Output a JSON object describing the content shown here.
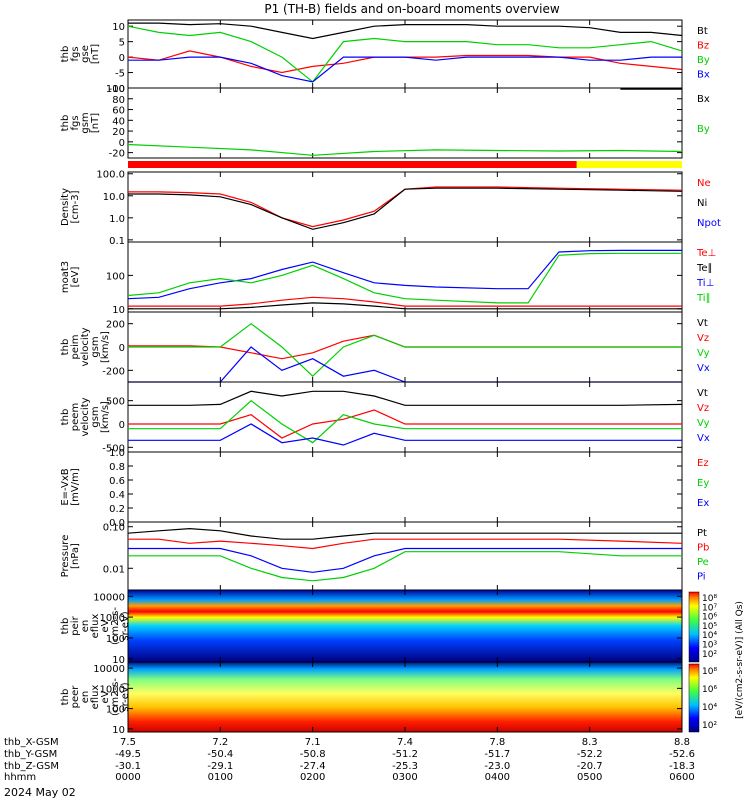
{
  "title": "P1 (TH-B) fields and on-board moments overview",
  "date_label": "2024 May 02",
  "colors": {
    "black": "#000000",
    "red": "#ff0000",
    "green": "#00d000",
    "blue": "#0000ff",
    "yellow": "#ffff00"
  },
  "bars": {
    "mode_bar": {
      "split_fraction": 0.81,
      "left_color": "#ff0000",
      "right_color": "#ffff00"
    }
  },
  "footer": {
    "row_labels": [
      "thb_X-GSM",
      "thb_Y-GSM",
      "thb_Z-GSM",
      "hhmm"
    ],
    "columns": [
      [
        "7.5",
        "-49.5",
        "-30.1",
        "0000"
      ],
      [
        "7.2",
        "-50.4",
        "-29.1",
        "0100"
      ],
      [
        "7.1",
        "-50.8",
        "-27.4",
        "0200"
      ],
      [
        "7.4",
        "-51.2",
        "-25.3",
        "0300"
      ],
      [
        "7.8",
        "-51.7",
        "-23.0",
        "0400"
      ],
      [
        "8.3",
        "-52.2",
        "-20.7",
        "0500"
      ],
      [
        "8.8",
        "-52.6",
        "-18.3",
        "0600"
      ]
    ]
  },
  "colorbars": {
    "label1": "[eV/(cm2-s-sr-eV)] (All Qs)",
    "label2": "[eV/(cm2-s-sr-eV)]",
    "ticks1": [
      "10⁸",
      "10⁷",
      "10⁶",
      "10⁵",
      "10⁴",
      "10³",
      "10²"
    ],
    "ticks2": [
      "10⁸",
      "10⁶",
      "10⁴",
      "10²"
    ]
  },
  "chart_data": [
    {
      "id": "fgs",
      "type": "line",
      "ylabel": [
        "thb",
        "fgs",
        "gse",
        "[nT]"
      ],
      "ylim": [
        -10,
        12
      ],
      "yticks": [
        -10,
        -5,
        0,
        5,
        10
      ],
      "x": [
        0,
        20,
        40,
        60,
        80,
        100,
        120,
        140,
        160,
        180,
        200,
        220,
        240,
        260,
        280,
        300,
        320,
        340,
        360
      ],
      "series": [
        {
          "name": "Bt",
          "color": "#000000",
          "values": [
            11,
            11,
            10.5,
            10.8,
            10,
            8,
            6,
            8,
            10,
            10.5,
            10.5,
            10.5,
            10,
            10,
            10,
            9.5,
            8,
            8,
            7
          ]
        },
        {
          "name": "Bz",
          "color": "#ff0000",
          "values": [
            0,
            -1,
            2,
            0,
            -3,
            -5,
            -3,
            -2,
            0,
            0,
            0,
            0.5,
            0.5,
            0.5,
            0,
            0,
            -2,
            -3,
            -4
          ]
        },
        {
          "name": "By",
          "color": "#00d000",
          "values": [
            10,
            8,
            7,
            8,
            5,
            0,
            -8,
            5,
            6,
            5,
            5,
            5,
            4,
            4,
            3,
            3,
            4,
            5,
            2
          ]
        },
        {
          "name": "Bx",
          "color": "#0000ff",
          "values": [
            -1,
            -1,
            0,
            0,
            -2,
            -6,
            -8,
            0,
            0,
            0,
            -1,
            0,
            0,
            0,
            0,
            -1,
            -1,
            0,
            0
          ]
        }
      ]
    },
    {
      "id": "fgs_gsm",
      "type": "line",
      "ylabel": [
        "thb",
        "fgs",
        "gsm",
        "[nT]"
      ],
      "ylim": [
        -30,
        100
      ],
      "yticks": [
        -20,
        0,
        20,
        40,
        60,
        80,
        100
      ],
      "x": [
        0,
        40,
        80,
        120,
        160,
        200,
        240,
        280,
        320,
        360
      ],
      "series": [
        {
          "name": "Bx",
          "color": "#000000",
          "values": [
            null,
            null,
            null,
            null,
            null,
            null,
            null,
            null,
            98,
            98
          ]
        },
        {
          "name": "By",
          "color": "#00d000",
          "values": [
            -5,
            -10,
            -15,
            -25,
            -18,
            -15,
            -16,
            -17,
            -16,
            -18
          ]
        }
      ]
    },
    {
      "id": "density",
      "type": "line",
      "ylog": true,
      "ylabel": [
        "Density",
        "[cm-3]"
      ],
      "ylim": [
        0.08,
        120
      ],
      "ytick_labels": [
        "0.1",
        "1.0",
        "10.0",
        "100.0"
      ],
      "yticks": [
        0.1,
        1,
        10,
        100
      ],
      "x": [
        0,
        20,
        40,
        60,
        80,
        100,
        120,
        140,
        160,
        180,
        200,
        240,
        280,
        320,
        360
      ],
      "series": [
        {
          "name": "Ne",
          "color": "#ff0000",
          "values": [
            15,
            15,
            14,
            12,
            5,
            1,
            0.4,
            0.8,
            2,
            20,
            25,
            25,
            22,
            20,
            18
          ]
        },
        {
          "name": "Ni",
          "color": "#000000",
          "values": [
            12,
            12,
            11,
            9,
            4,
            1,
            0.3,
            0.6,
            1.5,
            20,
            22,
            22,
            20,
            18,
            16
          ]
        },
        {
          "name": "Npot",
          "color": "#0000ff",
          "values": [
            null,
            null,
            null,
            null,
            null,
            null,
            null,
            null,
            null,
            null,
            null,
            null,
            null,
            null,
            null
          ]
        }
      ]
    },
    {
      "id": "temperature",
      "type": "line",
      "ylog": true,
      "ylabel": [
        "moat3",
        "[eV]"
      ],
      "ylim": [
        8,
        1000
      ],
      "ytick_labels": [
        "10",
        "100"
      ],
      "yticks": [
        10,
        100
      ],
      "x": [
        0,
        20,
        40,
        60,
        80,
        100,
        120,
        140,
        160,
        180,
        200,
        240,
        260,
        280,
        300,
        320,
        360
      ],
      "series": [
        {
          "name": "Te⊥",
          "color": "#ff0000",
          "values": [
            12,
            12,
            12,
            12,
            14,
            18,
            22,
            20,
            16,
            12,
            12,
            12,
            12,
            12,
            12,
            12,
            12
          ]
        },
        {
          "name": "Te∥",
          "color": "#000000",
          "values": [
            10,
            10,
            10,
            10,
            11,
            13,
            15,
            14,
            12,
            10,
            10,
            10,
            10,
            10,
            10,
            10,
            10
          ]
        },
        {
          "name": "Ti⊥",
          "color": "#0000ff",
          "values": [
            20,
            22,
            40,
            60,
            80,
            150,
            250,
            120,
            60,
            50,
            45,
            40,
            40,
            500,
            550,
            560,
            560
          ]
        },
        {
          "name": "Ti∥",
          "color": "#00d000",
          "values": [
            25,
            30,
            60,
            80,
            60,
            100,
            200,
            80,
            30,
            20,
            18,
            15,
            15,
            400,
            450,
            460,
            460
          ]
        }
      ]
    },
    {
      "id": "peim_velocity",
      "type": "line",
      "ylabel": [
        "thb",
        "peim",
        "velocity",
        "gsm",
        "[km/s]"
      ],
      "ylim": [
        -300,
        300
      ],
      "yticks": [
        -200,
        0,
        200
      ],
      "x": [
        0,
        20,
        40,
        60,
        80,
        100,
        120,
        140,
        160,
        180,
        200,
        240,
        280,
        320,
        360
      ],
      "series": [
        {
          "name": "Vt",
          "color": "#000000",
          "values": [
            null,
            null,
            null,
            null,
            null,
            null,
            null,
            null,
            null,
            null,
            null,
            null,
            null,
            null,
            null
          ]
        },
        {
          "name": "Vz",
          "color": "#ff0000",
          "values": [
            10,
            10,
            10,
            0,
            -50,
            -100,
            -50,
            50,
            100,
            0,
            0,
            0,
            0,
            0,
            0
          ]
        },
        {
          "name": "Vy",
          "color": "#00d000",
          "values": [
            0,
            0,
            0,
            0,
            200,
            0,
            -250,
            0,
            100,
            0,
            0,
            0,
            0,
            0,
            0
          ]
        },
        {
          "name": "Vx",
          "color": "#0000ff",
          "values": [
            -300,
            -300,
            -300,
            -300,
            0,
            -200,
            -100,
            -250,
            -200,
            -300,
            -300,
            -300,
            -300,
            -300,
            -300
          ]
        }
      ]
    },
    {
      "id": "peem_velocity",
      "type": "line",
      "ylabel": [
        "thb",
        "peem",
        "velocity",
        "gsm",
        "[km/s]"
      ],
      "ylim": [
        -600,
        900
      ],
      "yticks": [
        -500,
        0,
        500
      ],
      "x": [
        0,
        20,
        40,
        60,
        80,
        100,
        120,
        140,
        160,
        180,
        200,
        240,
        280,
        320,
        360
      ],
      "series": [
        {
          "name": "Vt",
          "color": "#000000",
          "values": [
            400,
            400,
            400,
            420,
            700,
            600,
            700,
            700,
            600,
            400,
            400,
            400,
            400,
            400,
            420
          ]
        },
        {
          "name": "Vz",
          "color": "#ff0000",
          "values": [
            0,
            0,
            0,
            0,
            200,
            -300,
            0,
            100,
            300,
            0,
            0,
            0,
            0,
            0,
            0
          ]
        },
        {
          "name": "Vy",
          "color": "#00d000",
          "values": [
            -100,
            -100,
            -100,
            -100,
            500,
            0,
            -400,
            200,
            0,
            -100,
            -100,
            -100,
            -100,
            -100,
            -100
          ]
        },
        {
          "name": "Vx",
          "color": "#0000ff",
          "values": [
            -350,
            -350,
            -350,
            -350,
            0,
            -400,
            -300,
            -450,
            -200,
            -350,
            -350,
            -350,
            -350,
            -350,
            -350
          ]
        }
      ]
    },
    {
      "id": "efield",
      "type": "line",
      "ylabel": [
        "E=-VxB",
        "[mV/m]"
      ],
      "ylim": [
        0,
        1
      ],
      "yticks": [
        0,
        0.2,
        0.4,
        0.6,
        0.8,
        1.0
      ],
      "ytick_labels": [
        "0.0",
        "0.2",
        "0.4",
        "0.6",
        "0.8",
        "1.0"
      ],
      "x": [
        0,
        360
      ],
      "series": [
        {
          "name": "Ez",
          "color": "#ff0000",
          "values": [
            null,
            null
          ]
        },
        {
          "name": "Ey",
          "color": "#00d000",
          "values": [
            null,
            null
          ]
        },
        {
          "name": "Ex",
          "color": "#0000ff",
          "values": [
            null,
            null
          ]
        }
      ]
    },
    {
      "id": "pressure",
      "type": "line",
      "ylog": true,
      "ylabel": [
        "Pressure",
        "[nPa]"
      ],
      "ylim": [
        0.003,
        0.13
      ],
      "ytick_labels": [
        "0.01",
        "0.10"
      ],
      "yticks": [
        0.01,
        0.1
      ],
      "x": [
        0,
        20,
        40,
        60,
        80,
        100,
        120,
        140,
        160,
        180,
        200,
        240,
        280,
        320,
        360
      ],
      "series": [
        {
          "name": "Pt",
          "color": "#000000",
          "values": [
            0.07,
            0.08,
            0.09,
            0.08,
            0.06,
            0.05,
            0.05,
            0.06,
            0.07,
            0.07,
            0.07,
            0.07,
            0.07,
            0.07,
            0.07
          ]
        },
        {
          "name": "Pb",
          "color": "#ff0000",
          "values": [
            0.05,
            0.05,
            0.04,
            0.045,
            0.04,
            0.035,
            0.03,
            0.04,
            0.05,
            0.05,
            0.05,
            0.05,
            0.05,
            0.045,
            0.04
          ]
        },
        {
          "name": "Pe",
          "color": "#00d000",
          "values": [
            0.02,
            0.02,
            0.02,
            0.02,
            0.01,
            0.006,
            0.005,
            0.006,
            0.01,
            0.025,
            0.025,
            0.025,
            0.025,
            0.02,
            0.02
          ]
        },
        {
          "name": "Pi",
          "color": "#0000ff",
          "values": [
            0.03,
            0.03,
            0.03,
            0.03,
            0.02,
            0.01,
            0.008,
            0.01,
            0.02,
            0.03,
            0.03,
            0.03,
            0.03,
            0.03,
            0.03
          ]
        }
      ]
    },
    {
      "id": "peir_spec",
      "type": "heatmap",
      "ylabel": [
        "thb",
        "peir",
        "en",
        "eflux",
        "eV",
        "(cm2-s-",
        "sr-eV)"
      ],
      "ylog": true,
      "ylim": [
        7,
        20000
      ],
      "yticks": [
        10,
        100,
        1000,
        10000
      ],
      "ytick_labels": [
        "10",
        "100",
        "1000",
        "10000"
      ]
    },
    {
      "id": "peer_spec",
      "type": "heatmap",
      "ylabel": [
        "thb",
        "peer",
        "en",
        "eflux",
        "eV",
        "(cm2-s-",
        "sr-eV)"
      ],
      "ylog": true,
      "ylim": [
        7,
        20000
      ],
      "yticks": [
        10,
        100,
        1000,
        10000
      ],
      "ytick_labels": [
        "10",
        "100",
        "1000",
        "10000"
      ]
    }
  ]
}
